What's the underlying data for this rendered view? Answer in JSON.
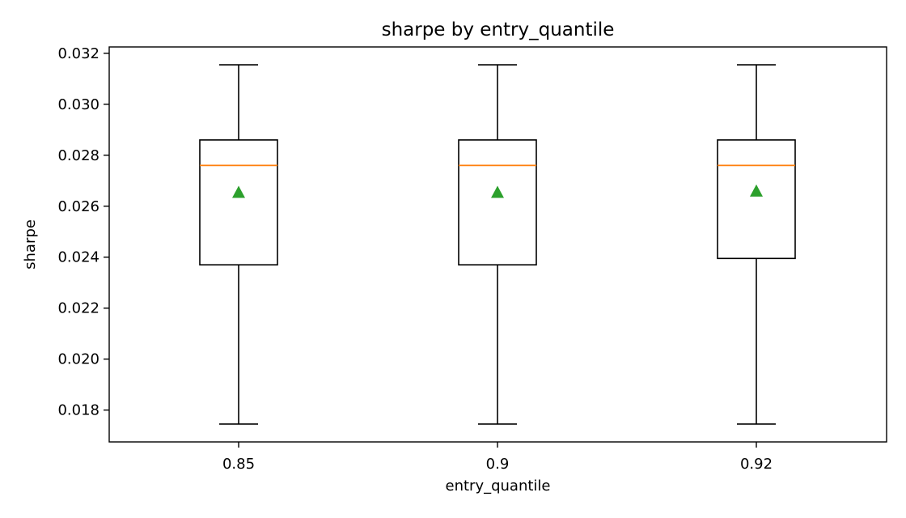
{
  "chart_data": {
    "type": "box",
    "title": "sharpe by entry_quantile",
    "xlabel": "entry_quantile",
    "ylabel": "sharpe",
    "categories": [
      "0.85",
      "0.9",
      "0.92"
    ],
    "ylim": [
      0.01675,
      0.03225
    ],
    "yticks": [
      0.018,
      0.02,
      0.022,
      0.024,
      0.026,
      0.028,
      0.03,
      0.032
    ],
    "ytick_labels": [
      "0.018",
      "0.020",
      "0.022",
      "0.024",
      "0.026",
      "0.028",
      "0.030",
      "0.032"
    ],
    "grid": false,
    "boxes": [
      {
        "category": "0.85",
        "whisker_low": 0.01745,
        "q1": 0.0237,
        "median": 0.0276,
        "q3": 0.0286,
        "whisker_high": 0.03155,
        "mean": 0.02655
      },
      {
        "category": "0.9",
        "whisker_low": 0.01745,
        "q1": 0.0237,
        "median": 0.0276,
        "q3": 0.0286,
        "whisker_high": 0.03155,
        "mean": 0.02655
      },
      {
        "category": "0.92",
        "whisker_low": 0.01745,
        "q1": 0.02395,
        "median": 0.0276,
        "q3": 0.0286,
        "whisker_high": 0.03155,
        "mean": 0.0266
      }
    ],
    "colors": {
      "box": "#000000",
      "median": "#ff7f0e",
      "mean_marker": "#2ca02c"
    }
  }
}
